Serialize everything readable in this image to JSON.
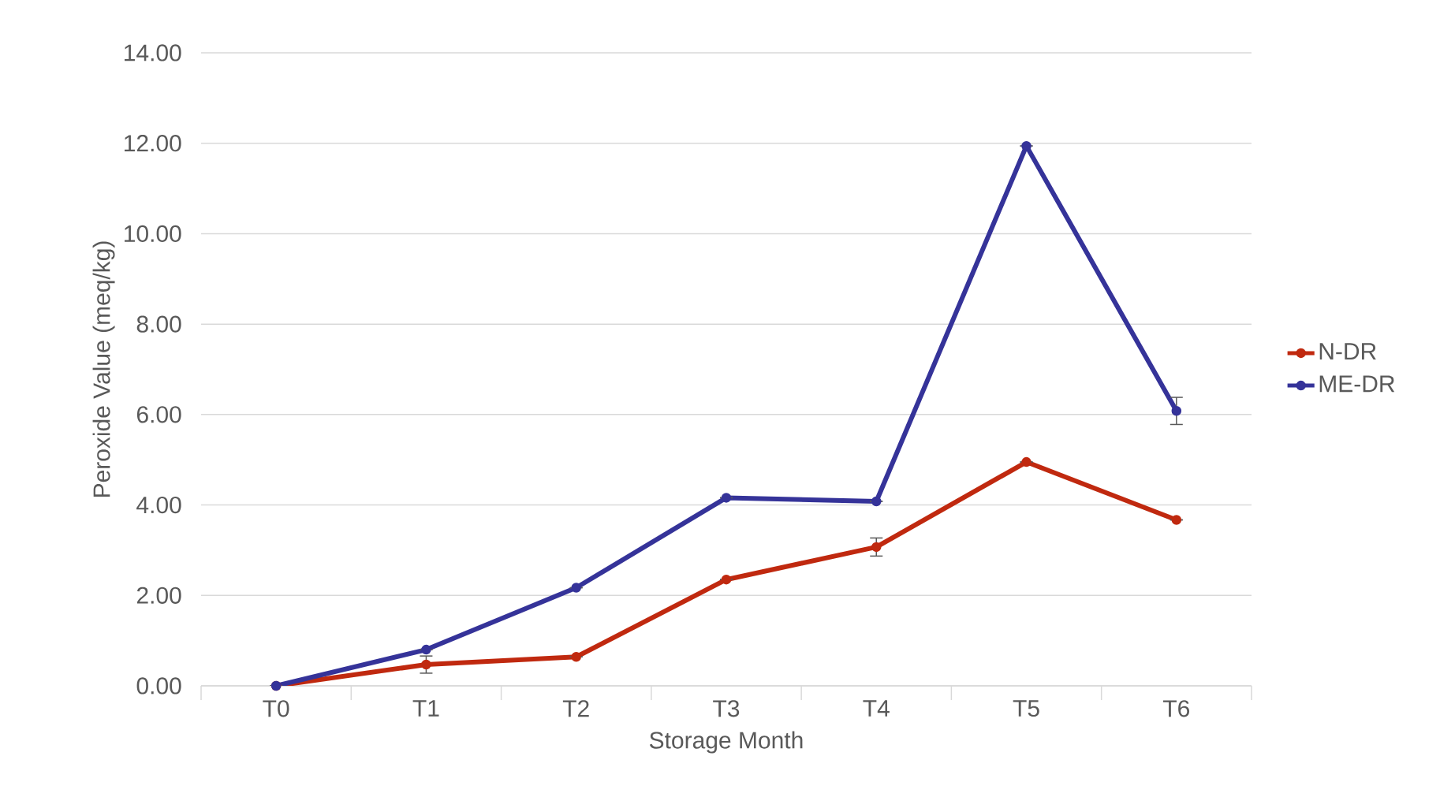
{
  "chart_data": {
    "type": "line",
    "xlabel": "Storage Month",
    "ylabel": "Peroxide Value (meq/kg)",
    "categories": [
      "T0",
      "T1",
      "T2",
      "T3",
      "T4",
      "T5",
      "T6"
    ],
    "series": [
      {
        "name": "N-DR",
        "color": "#c0290f",
        "values": [
          0,
          0.47,
          0.64,
          2.35,
          3.07,
          4.95,
          3.67
        ],
        "errors": [
          null,
          0.19,
          null,
          null,
          0.2,
          null,
          null
        ]
      },
      {
        "name": "ME-DR",
        "color": "#353399",
        "values": [
          0,
          0.8,
          2.17,
          4.16,
          4.08,
          11.94,
          6.08
        ],
        "errors": [
          null,
          null,
          null,
          null,
          null,
          null,
          0.3
        ]
      }
    ],
    "ylim": [
      0,
      14
    ],
    "yticks": [
      {
        "value": 0,
        "label": "0.00"
      },
      {
        "value": 2,
        "label": "2.00"
      },
      {
        "value": 4,
        "label": "4.00"
      },
      {
        "value": 6,
        "label": "6.00"
      },
      {
        "value": 8,
        "label": "8.00"
      },
      {
        "value": 10,
        "label": "10.00"
      },
      {
        "value": 12,
        "label": "12.00"
      },
      {
        "value": 14,
        "label": "14.00"
      }
    ],
    "grid": "y",
    "legend": "right",
    "marker": "circle",
    "line_style": "solid"
  }
}
